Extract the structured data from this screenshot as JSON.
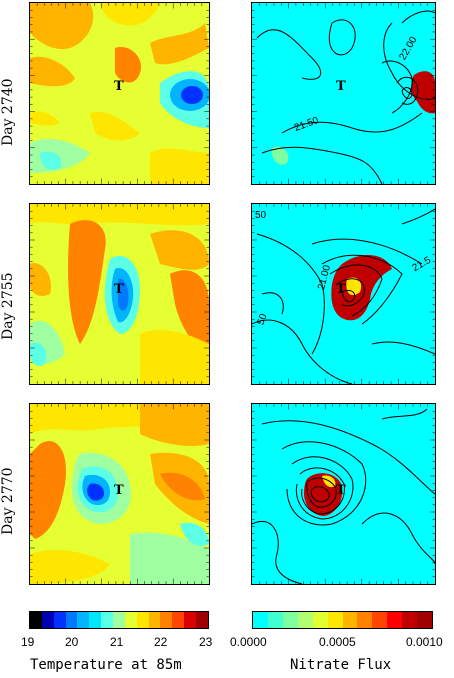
{
  "rows": [
    {
      "day": "Day 2740",
      "marker": "T"
    },
    {
      "day": "Day 2755",
      "marker": "T"
    },
    {
      "day": "Day 2770",
      "marker": "T"
    }
  ],
  "contour_labels": {
    "row1": [
      "22.00",
      "21.50"
    ],
    "row2": [
      "50",
      "21.00",
      "21.5",
      "50"
    ]
  },
  "temperature_colorbar": {
    "title": "Temperature at 85m",
    "ticks": [
      "19",
      "20",
      "21",
      "22",
      "23"
    ],
    "colors": [
      "#000000",
      "#0000b4",
      "#0032ff",
      "#0078ff",
      "#00b4ff",
      "#00e6ff",
      "#5affe6",
      "#a0ffa0",
      "#e6ff32",
      "#ffe600",
      "#ffb400",
      "#ff8200",
      "#ff4600",
      "#dc0000",
      "#a00000"
    ]
  },
  "nitrate_colorbar": {
    "title": "Nitrate Flux",
    "ticks": [
      "0.0000",
      "0.0005",
      "0.0010"
    ],
    "colors": [
      "#00ffff",
      "#40ffd0",
      "#80ffa0",
      "#b0ff70",
      "#e0ff30",
      "#ffe600",
      "#ffb400",
      "#ff8200",
      "#ff4600",
      "#ff0000",
      "#c00000",
      "#a00000"
    ]
  }
}
